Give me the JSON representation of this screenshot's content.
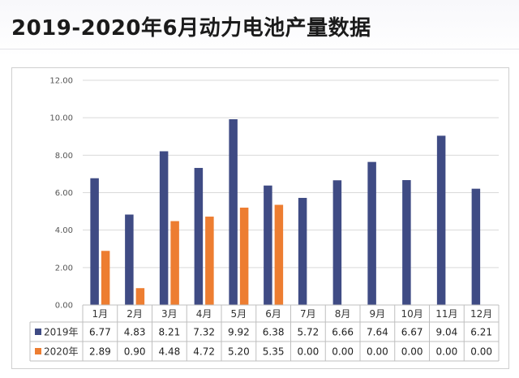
{
  "page": {
    "title": "2019-2020年6月动力电池产量数据"
  },
  "colors": {
    "series_2019": "#3f4b84",
    "series_2020": "#ed7d31",
    "grid": "#d9d9d9",
    "table_border": "#bfbfbf"
  },
  "chart_data": {
    "type": "bar",
    "title": "",
    "xlabel": "",
    "ylabel": "",
    "categories": [
      "1月",
      "2月",
      "3月",
      "4月",
      "5月",
      "6月",
      "7月",
      "8月",
      "9月",
      "10月",
      "11月",
      "12月"
    ],
    "series": [
      {
        "name": "2019年",
        "values": [
          6.77,
          4.83,
          8.21,
          7.32,
          9.92,
          6.38,
          5.72,
          6.66,
          7.64,
          6.67,
          9.04,
          6.21
        ]
      },
      {
        "name": "2020年",
        "values": [
          2.89,
          0.9,
          4.48,
          4.72,
          5.2,
          5.35,
          0.0,
          0.0,
          0.0,
          0.0,
          0.0,
          0.0
        ]
      }
    ],
    "ylim": [
      0,
      12
    ],
    "yticks": [
      "0.00",
      "2.00",
      "4.00",
      "6.00",
      "8.00",
      "10.00",
      "12.00"
    ],
    "value_labels": [
      [
        "6.77",
        "4.83",
        "8.21",
        "7.32",
        "9.92",
        "6.38",
        "5.72",
        "6.66",
        "7.64",
        "6.67",
        "9.04",
        "6.21"
      ],
      [
        "2.89",
        "0.90",
        "4.48",
        "4.72",
        "5.20",
        "5.35",
        "0.00",
        "0.00",
        "0.00",
        "0.00",
        "0.00",
        "0.00"
      ]
    ],
    "grid": true,
    "legend": "data-table"
  }
}
